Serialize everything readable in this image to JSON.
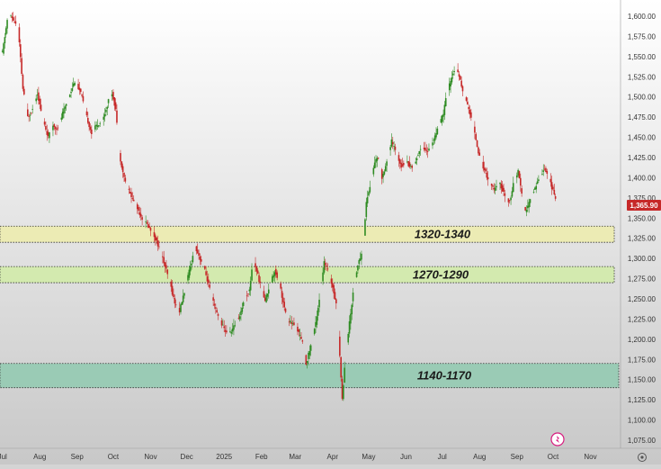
{
  "chart_data": {
    "type": "candlestick",
    "y_axis": {
      "min": 1075,
      "max": 1600,
      "ticks": [
        "1,075.00",
        "1,100.00",
        "1,125.00",
        "1,150.00",
        "1,175.00",
        "1,200.00",
        "1,225.00",
        "1,250.00",
        "1,275.00",
        "1,300.00",
        "1,325.00",
        "1,350.00",
        "1,375.00",
        "1,400.00",
        "1,425.00",
        "1,450.00",
        "1,475.00",
        "1,500.00",
        "1,525.00",
        "1,550.00",
        "1,575.00",
        "1,600.00"
      ]
    },
    "x_axis": {
      "labels": [
        {
          "label": "Jul",
          "date": "2024-07-01"
        },
        {
          "label": "Aug",
          "date": "2024-08-01"
        },
        {
          "label": "Sep",
          "date": "2024-09-01"
        },
        {
          "label": "Oct",
          "date": "2024-10-01"
        },
        {
          "label": "Nov",
          "date": "2024-11-01"
        },
        {
          "label": "Dec",
          "date": "2024-12-01"
        },
        {
          "label": "2025",
          "date": "2025-01-01"
        },
        {
          "label": "Feb",
          "date": "2025-02-01"
        },
        {
          "label": "Mar",
          "date": "2025-03-01"
        },
        {
          "label": "Apr",
          "date": "2025-04-01"
        },
        {
          "label": "May",
          "date": "2025-05-01"
        },
        {
          "label": "Jun",
          "date": "2025-06-01"
        },
        {
          "label": "Jul",
          "date": "2025-07-01"
        },
        {
          "label": "Aug",
          "date": "2025-08-01"
        },
        {
          "label": "Sep",
          "date": "2025-09-01"
        },
        {
          "label": "Oct",
          "date": "2025-10-01"
        },
        {
          "label": "Nov",
          "date": "2025-11-01"
        }
      ]
    },
    "price_path": [
      [
        "2024-07-01",
        1555
      ],
      [
        "2024-07-03",
        1575
      ],
      [
        "2024-07-06",
        1605
      ],
      [
        "2024-07-10",
        1595
      ],
      [
        "2024-07-14",
        1585
      ],
      [
        "2024-07-18",
        1510
      ],
      [
        "2024-07-22",
        1475
      ],
      [
        "2024-07-26",
        1485
      ],
      [
        "2024-07-30",
        1505
      ],
      [
        "2024-08-03",
        1475
      ],
      [
        "2024-08-08",
        1450
      ],
      [
        "2024-08-12",
        1465
      ],
      [
        "2024-08-16",
        1460
      ],
      [
        "2024-08-20",
        1480
      ],
      [
        "2024-08-25",
        1500
      ],
      [
        "2024-08-30",
        1520
      ],
      [
        "2024-09-04",
        1505
      ],
      [
        "2024-09-09",
        1475
      ],
      [
        "2024-09-13",
        1455
      ],
      [
        "2024-09-17",
        1465
      ],
      [
        "2024-09-22",
        1470
      ],
      [
        "2024-09-27",
        1495
      ],
      [
        "2024-09-30",
        1505
      ],
      [
        "2024-10-03",
        1485
      ],
      [
        "2024-10-06",
        1430
      ],
      [
        "2024-10-10",
        1400
      ],
      [
        "2024-10-15",
        1380
      ],
      [
        "2024-10-20",
        1365
      ],
      [
        "2024-10-25",
        1350
      ],
      [
        "2024-10-30",
        1340
      ],
      [
        "2024-11-04",
        1328
      ],
      [
        "2024-11-09",
        1310
      ],
      [
        "2024-11-13",
        1290
      ],
      [
        "2024-11-17",
        1270
      ],
      [
        "2024-11-21",
        1245
      ],
      [
        "2024-11-25",
        1235
      ],
      [
        "2024-11-30",
        1265
      ],
      [
        "2024-12-04",
        1290
      ],
      [
        "2024-12-08",
        1315
      ],
      [
        "2024-12-12",
        1300
      ],
      [
        "2024-12-16",
        1285
      ],
      [
        "2024-12-20",
        1262
      ],
      [
        "2024-12-24",
        1240
      ],
      [
        "2024-12-28",
        1225
      ],
      [
        "2025-01-02",
        1210
      ],
      [
        "2025-01-06",
        1208
      ],
      [
        "2025-01-10",
        1218
      ],
      [
        "2025-01-14",
        1230
      ],
      [
        "2025-01-18",
        1250
      ],
      [
        "2025-01-22",
        1260
      ],
      [
        "2025-01-25",
        1300
      ],
      [
        "2025-01-28",
        1285
      ],
      [
        "2025-02-01",
        1262
      ],
      [
        "2025-02-04",
        1248
      ],
      [
        "2025-02-08",
        1268
      ],
      [
        "2025-02-12",
        1285
      ],
      [
        "2025-02-16",
        1270
      ],
      [
        "2025-02-19",
        1245
      ],
      [
        "2025-02-22",
        1225
      ],
      [
        "2025-02-26",
        1220
      ],
      [
        "2025-03-03",
        1212
      ],
      [
        "2025-03-07",
        1195
      ],
      [
        "2025-03-10",
        1170
      ],
      [
        "2025-03-14",
        1192
      ],
      [
        "2025-03-18",
        1220
      ],
      [
        "2025-03-22",
        1260
      ],
      [
        "2025-03-25",
        1295
      ],
      [
        "2025-03-28",
        1285
      ],
      [
        "2025-04-01",
        1265
      ],
      [
        "2025-04-04",
        1245
      ],
      [
        "2025-04-07",
        1180
      ],
      [
        "2025-04-09",
        1125
      ],
      [
        "2025-04-12",
        1185
      ],
      [
        "2025-04-16",
        1232
      ],
      [
        "2025-04-19",
        1270
      ],
      [
        "2025-04-22",
        1292
      ],
      [
        "2025-04-26",
        1310
      ],
      [
        "2025-04-29",
        1370
      ],
      [
        "2025-05-03",
        1395
      ],
      [
        "2025-05-06",
        1420
      ],
      [
        "2025-05-09",
        1425
      ],
      [
        "2025-05-12",
        1400
      ],
      [
        "2025-05-16",
        1420
      ],
      [
        "2025-05-20",
        1445
      ],
      [
        "2025-05-24",
        1430
      ],
      [
        "2025-05-28",
        1415
      ],
      [
        "2025-06-01",
        1420
      ],
      [
        "2025-06-06",
        1412
      ],
      [
        "2025-06-10",
        1425
      ],
      [
        "2025-06-14",
        1440
      ],
      [
        "2025-06-19",
        1432
      ],
      [
        "2025-06-24",
        1448
      ],
      [
        "2025-06-28",
        1462
      ],
      [
        "2025-07-02",
        1480
      ],
      [
        "2025-07-05",
        1505
      ],
      [
        "2025-07-09",
        1525
      ],
      [
        "2025-07-12",
        1538
      ],
      [
        "2025-07-16",
        1520
      ],
      [
        "2025-07-20",
        1498
      ],
      [
        "2025-07-24",
        1480
      ],
      [
        "2025-07-28",
        1455
      ],
      [
        "2025-08-01",
        1425
      ],
      [
        "2025-08-05",
        1410
      ],
      [
        "2025-08-09",
        1395
      ],
      [
        "2025-08-13",
        1385
      ],
      [
        "2025-08-18",
        1392
      ],
      [
        "2025-08-22",
        1378
      ],
      [
        "2025-08-26",
        1370
      ],
      [
        "2025-08-30",
        1398
      ],
      [
        "2025-09-02",
        1408
      ],
      [
        "2025-09-05",
        1378
      ],
      [
        "2025-09-08",
        1358
      ],
      [
        "2025-09-12",
        1372
      ],
      [
        "2025-09-16",
        1388
      ],
      [
        "2025-09-20",
        1402
      ],
      [
        "2025-09-24",
        1412
      ],
      [
        "2025-09-27",
        1403
      ],
      [
        "2025-09-30",
        1388
      ],
      [
        "2025-10-03",
        1374
      ],
      [
        "2025-10-05",
        1366
      ]
    ],
    "last_price": "1,365.90",
    "zones": [
      {
        "label": "1320-1340",
        "low": 1320,
        "high": 1340,
        "color": "#ecebb4"
      },
      {
        "label": "1270-1290",
        "low": 1270,
        "high": 1290,
        "color": "#d3eaaf"
      },
      {
        "label": "1140-1170",
        "low": 1140,
        "high": 1170,
        "color": "#9acbb5"
      }
    ],
    "colors": {
      "up": "#2e8b22",
      "down": "#c62828",
      "price_tag": "#c62828"
    }
  }
}
